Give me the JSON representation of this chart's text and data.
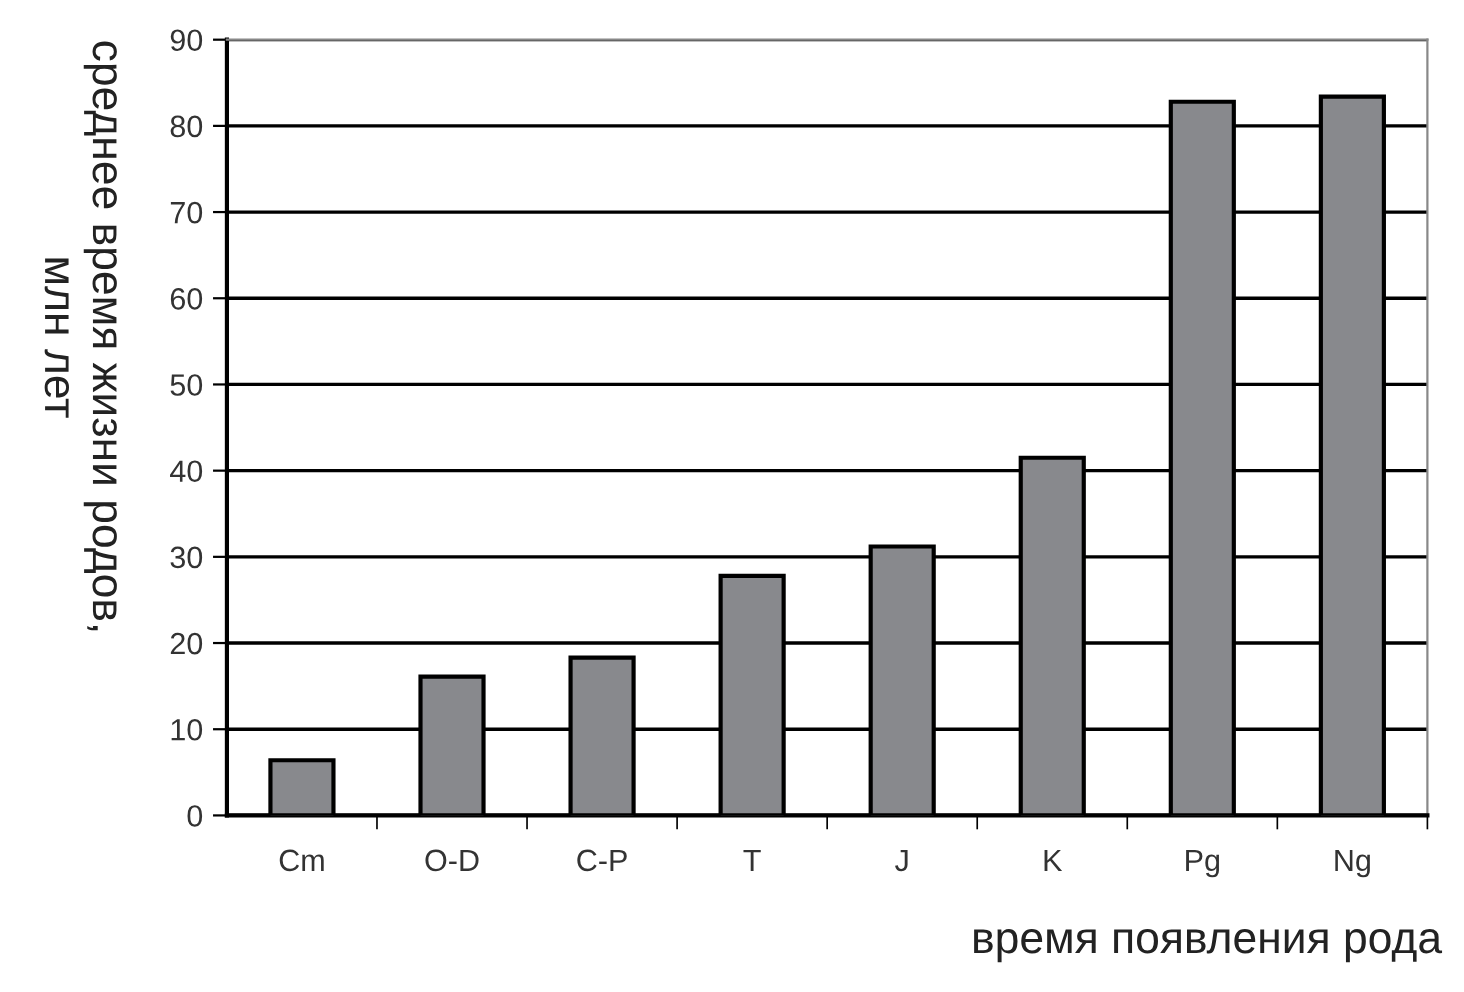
{
  "chart_data": {
    "type": "bar",
    "categories": [
      "Cm",
      "O-D",
      "C-P",
      "T",
      "J",
      "K",
      "Pg",
      "Ng"
    ],
    "values": [
      6.4,
      16.1,
      18.3,
      27.8,
      31.2,
      41.5,
      82.8,
      83.4
    ],
    "color": "#88898d",
    "ylim": [
      0,
      90
    ],
    "yticks": [
      0,
      10,
      20,
      30,
      40,
      50,
      60,
      70,
      80,
      90
    ],
    "grid": "y",
    "ylabel": "среднее время жизни родов,\nмлн лет",
    "xlabel": "время появления рода"
  }
}
